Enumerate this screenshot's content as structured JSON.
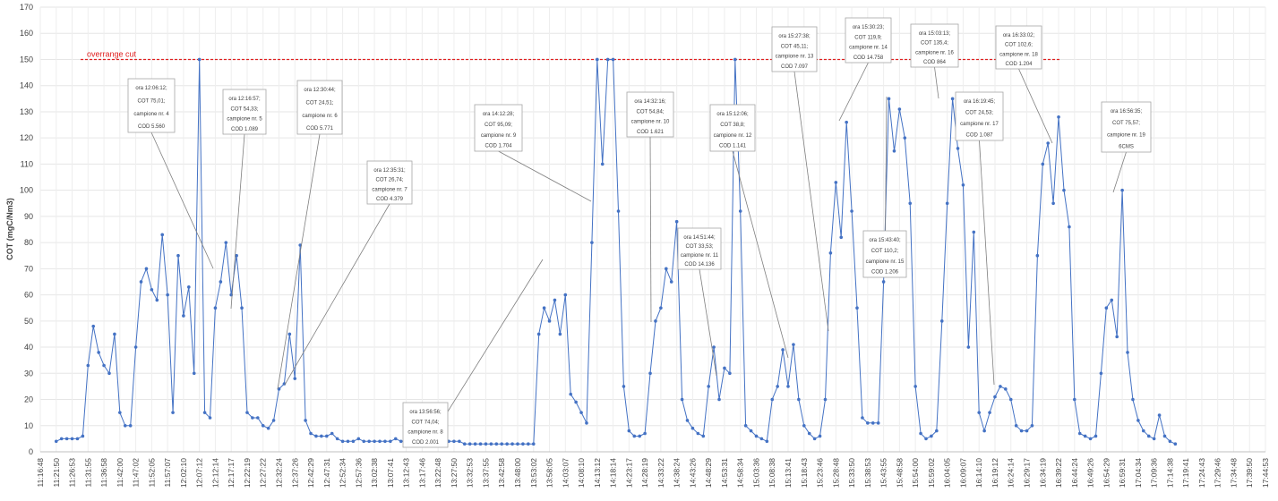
{
  "chart_data": {
    "type": "line",
    "y_label": "COT (mgC/Nm3)",
    "ylim": [
      0,
      170
    ],
    "yticks": [
      0,
      10,
      20,
      30,
      40,
      50,
      60,
      70,
      80,
      90,
      100,
      110,
      120,
      130,
      140,
      150,
      160,
      170
    ],
    "grid": true,
    "color": "#4472c4",
    "threshold": {
      "value": 150,
      "label": "overrange cut",
      "color": "#e02020"
    },
    "categories": [
      "11:16:48",
      null,
      null,
      "11:21:50",
      null,
      null,
      "11:26:53",
      null,
      null,
      "11:31:55",
      null,
      null,
      "11:36:58",
      null,
      null,
      "11:42:00",
      null,
      null,
      "11:47:02",
      null,
      null,
      "11:52:05",
      null,
      null,
      "11:57:07",
      null,
      null,
      "12:02:10",
      null,
      null,
      "12:07:12",
      null,
      null,
      "12:12:14",
      null,
      null,
      "12:17:17",
      null,
      null,
      "12:22:19",
      null,
      null,
      "12:27:22",
      null,
      null,
      "12:32:24",
      null,
      null,
      "12:37:26",
      null,
      null,
      "12:42:29",
      null,
      null,
      "12:47:31",
      null,
      null,
      "12:52:34",
      null,
      null,
      "12:57:36",
      null,
      null,
      "13:02:38",
      null,
      null,
      "13:07:41",
      null,
      null,
      "13:12:43",
      null,
      null,
      "13:17:46",
      null,
      null,
      "13:22:48",
      null,
      null,
      "13:27:50",
      null,
      null,
      "13:32:53",
      null,
      null,
      "13:37:55",
      null,
      null,
      "13:42:58",
      null,
      null,
      "13:48:00",
      null,
      null,
      "13:53:02",
      null,
      null,
      "13:58:05",
      null,
      null,
      "14:03:07",
      null,
      null,
      "14:08:10",
      null,
      null,
      "14:13:12",
      null,
      null,
      "14:18:14",
      null,
      null,
      "14:23:17",
      null,
      null,
      "14:28:19",
      null,
      null,
      "14:33:22",
      null,
      null,
      "14:38:24",
      null,
      null,
      "14:43:26",
      null,
      null,
      "14:48:29",
      null,
      null,
      "14:53:31",
      null,
      null,
      "14:58:34",
      null,
      null,
      "15:03:36",
      null,
      null,
      "15:08:38",
      null,
      null,
      "15:13:41",
      null,
      null,
      "15:18:43",
      null,
      null,
      "15:23:46",
      null,
      null,
      "15:28:48",
      null,
      null,
      "15:33:50",
      null,
      null,
      "15:38:53",
      null,
      null,
      "15:43:55",
      null,
      null,
      "15:48:58",
      null,
      null,
      "15:54:00",
      null,
      null,
      "15:59:02",
      null,
      null,
      "16:04:05",
      null,
      null,
      "16:09:07",
      null,
      null,
      "16:14:10",
      null,
      null,
      "16:19:12",
      null,
      null,
      "16:24:14",
      null,
      null,
      "16:29:17",
      null,
      null,
      "16:34:19",
      null,
      null,
      "16:39:22",
      null,
      null,
      "16:44:24",
      null,
      null,
      "16:49:26",
      null,
      null,
      "16:54:29",
      null,
      null,
      "16:59:31",
      null,
      null,
      "17:04:34",
      null,
      null,
      "17:09:36",
      null,
      null,
      "17:14:38",
      null,
      null,
      "17:19:41",
      null,
      null,
      "17:24:43",
      null,
      null,
      "17:29:46",
      null,
      null,
      "17:34:48",
      null,
      null,
      "17:39:50",
      null,
      null,
      "17:44:53"
    ],
    "values": [
      null,
      null,
      null,
      4,
      5,
      5,
      5,
      5,
      6,
      33,
      48,
      38,
      33,
      30,
      45,
      15,
      10,
      10,
      40,
      65,
      70,
      62,
      58,
      83,
      60,
      15,
      75,
      52,
      63,
      30,
      150,
      15,
      13,
      55,
      65,
      80,
      60,
      75,
      55,
      15,
      13,
      13,
      10,
      9,
      12,
      24,
      26,
      45,
      28,
      79,
      12,
      7,
      6,
      6,
      6,
      7,
      5,
      4,
      4,
      4,
      5,
      4,
      4,
      4,
      4,
      4,
      4,
      5,
      4,
      4,
      4,
      4,
      4,
      4,
      4,
      4,
      4,
      4,
      4,
      4,
      3,
      3,
      3,
      3,
      3,
      3,
      3,
      3,
      3,
      3,
      3,
      3,
      3,
      3,
      45,
      55,
      50,
      58,
      45,
      60,
      22,
      19,
      15,
      11,
      80,
      150,
      110,
      150,
      150,
      92,
      25,
      8,
      6,
      6,
      7,
      30,
      50,
      55,
      70,
      65,
      88,
      20,
      12,
      9,
      7,
      6,
      25,
      40,
      20,
      32,
      30,
      150,
      92,
      10,
      8,
      6,
      5,
      4,
      20,
      25,
      39,
      25,
      41,
      20,
      10,
      7,
      5,
      6,
      20,
      76,
      103,
      82,
      126,
      92,
      55,
      13,
      11,
      11,
      11,
      65,
      135,
      115,
      131,
      120,
      95,
      25,
      7,
      5,
      6,
      8,
      50,
      95,
      135,
      116,
      102,
      40,
      84,
      15,
      8,
      15,
      21,
      25,
      24,
      20,
      10,
      8,
      8,
      10,
      75,
      110,
      118,
      95,
      128,
      100,
      86,
      20,
      7,
      6,
      5,
      6,
      30,
      55,
      58,
      44,
      100,
      38,
      20,
      12,
      8,
      6,
      5,
      14,
      6,
      4,
      3,
      null,
      null,
      null,
      null,
      null,
      null,
      null,
      null,
      null,
      null,
      null,
      null,
      null,
      null,
      null,
      null,
      null
    ],
    "annotations": [
      {
        "lines": [
          "ora 12:06:12;",
          "COT 75,01;",
          "campione nr. 4",
          "COD 5.560"
        ]
      },
      {
        "lines": [
          "ora 12:16:57;",
          "COT 54,33;",
          "campione nr. 5",
          "COD 1.089"
        ]
      },
      {
        "lines": [
          "ora 12:30:44;",
          "COT 24,51;",
          "campione nr. 6",
          "COD 5.771"
        ]
      },
      {
        "lines": [
          "ora 12:35:31;",
          "COT 26,74;",
          "campione nr. 7",
          "COD 4.379"
        ]
      },
      {
        "lines": [
          "ora 13:56:56;",
          "COT 74,04;",
          "campione nr. 8",
          "COD 2.001"
        ]
      },
      {
        "lines": [
          "ora 14:12:28;",
          "COT 95,09;",
          "campione nr. 9",
          "COD 1.704"
        ]
      },
      {
        "lines": [
          "ora 14:32:16;",
          "COT 54,84;",
          "campione nr. 10",
          "COD 1.621"
        ]
      },
      {
        "lines": [
          "ora 14:51:44;",
          "COT 33,53;",
          "campione nr. 11",
          "COD 14.136"
        ]
      },
      {
        "lines": [
          "ora 15:12:06;",
          "COT 38,8;",
          "campione nr. 12",
          "COD 1.141"
        ]
      },
      {
        "lines": [
          "ora 15:27:38;",
          "COT 45,11;",
          "campione nr. 13",
          "COD 7.097"
        ]
      },
      {
        "lines": [
          "ora 15:30:23;",
          "COT 119,9;",
          "campione nr. 14",
          "COD 14.758"
        ]
      },
      {
        "lines": [
          "ora 15:43:40;",
          "COT 110,2;",
          "campione nr. 15",
          "COD 1.206"
        ]
      },
      {
        "lines": [
          "ora 15:03:13;",
          "COT 135,4;",
          "campione nr. 16",
          "COD 864"
        ]
      },
      {
        "lines": [
          "ora 16:19:45;",
          "COT 24,53;",
          "campione nr. 17",
          "COD 1.087"
        ]
      },
      {
        "lines": [
          "ora 16:33:02;",
          "COT 102,6;",
          "campione nr. 18",
          "COD 1.204"
        ]
      },
      {
        "lines": [
          "ora 16:56:35;",
          "COT 75,57;",
          "campione nr. 19",
          "6CMS"
        ]
      }
    ]
  }
}
